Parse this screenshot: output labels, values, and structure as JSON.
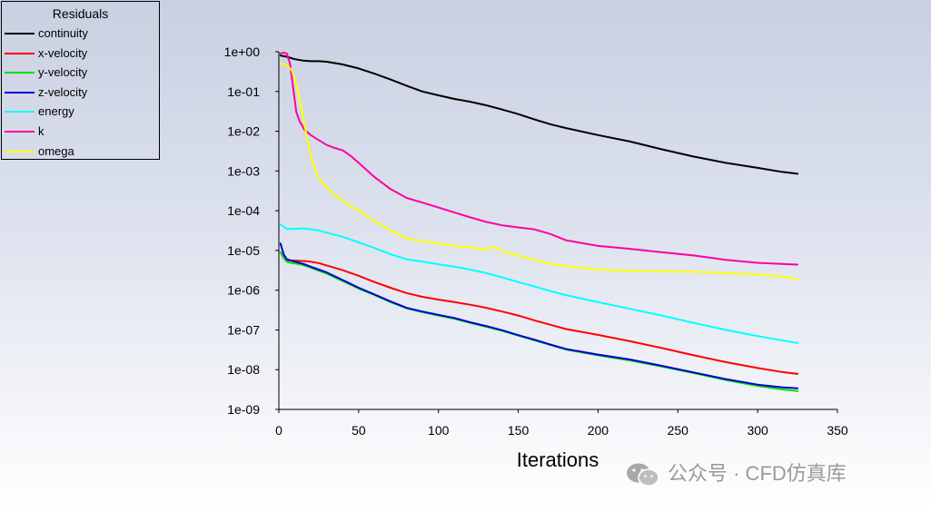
{
  "legend": {
    "title": "Residuals",
    "items": [
      {
        "label": "continuity",
        "color": "#000000"
      },
      {
        "label": "x-velocity",
        "color": "#ff0000"
      },
      {
        "label": "y-velocity",
        "color": "#00e000"
      },
      {
        "label": "z-velocity",
        "color": "#0000d0"
      },
      {
        "label": "energy",
        "color": "#00ffff"
      },
      {
        "label": "k",
        "color": "#ff00a0"
      },
      {
        "label": "omega",
        "color": "#ffff00"
      }
    ]
  },
  "watermark": {
    "text": "公众号 · CFD仿真库",
    "icon": "wechat-icon"
  },
  "chart_data": {
    "type": "line",
    "title": "",
    "xlabel": "Iterations",
    "ylabel": "",
    "xlim": [
      0,
      350
    ],
    "ylim": [
      1e-09,
      1
    ],
    "yscale": "log",
    "xticks": [
      0,
      50,
      100,
      150,
      200,
      250,
      300,
      350
    ],
    "yticks": [
      {
        "value": 1,
        "label": "1e+00"
      },
      {
        "value": 0.1,
        "label": "1e-01"
      },
      {
        "value": 0.01,
        "label": "1e-02"
      },
      {
        "value": 0.001,
        "label": "1e-03"
      },
      {
        "value": 0.0001,
        "label": "1e-04"
      },
      {
        "value": 1e-05,
        "label": "1e-05"
      },
      {
        "value": 1e-06,
        "label": "1e-06"
      },
      {
        "value": 1e-07,
        "label": "1e-07"
      },
      {
        "value": 1e-08,
        "label": "1e-08"
      },
      {
        "value": 1e-09,
        "label": "1e-09"
      }
    ],
    "series": [
      {
        "name": "continuity",
        "color": "#000000",
        "x": [
          1,
          5,
          10,
          15,
          20,
          25,
          30,
          40,
          50,
          60,
          70,
          80,
          90,
          100,
          110,
          120,
          130,
          140,
          150,
          160,
          170,
          180,
          200,
          220,
          240,
          260,
          280,
          300,
          315,
          325
        ],
        "y": [
          0.8,
          0.75,
          0.65,
          0.6,
          0.58,
          0.58,
          0.56,
          0.48,
          0.38,
          0.28,
          0.2,
          0.14,
          0.1,
          0.08,
          0.065,
          0.055,
          0.045,
          0.035,
          0.027,
          0.02,
          0.015,
          0.012,
          0.008,
          0.0055,
          0.0035,
          0.0023,
          0.0016,
          0.0012,
          0.00095,
          0.00085
        ]
      },
      {
        "name": "x-velocity",
        "color": "#ff0000",
        "x": [
          1,
          3,
          5,
          8,
          12,
          16,
          20,
          25,
          30,
          40,
          50,
          60,
          70,
          80,
          90,
          100,
          110,
          120,
          130,
          140,
          150,
          160,
          170,
          180,
          200,
          220,
          240,
          260,
          280,
          300,
          315,
          325
        ],
        "y": [
          9e-06,
          6.5e-06,
          5.6e-06,
          5.6e-06,
          5.5e-06,
          5.4e-06,
          5.2e-06,
          4.8e-06,
          4.2e-06,
          3.2e-06,
          2.3e-06,
          1.6e-06,
          1.15e-06,
          8.5e-07,
          6.8e-07,
          5.8e-07,
          5e-07,
          4.3e-07,
          3.6e-07,
          2.9e-07,
          2.3e-07,
          1.75e-07,
          1.35e-07,
          1.05e-07,
          7.5e-08,
          5.2e-08,
          3.5e-08,
          2.3e-08,
          1.55e-08,
          1.1e-08,
          8.8e-09,
          7.8e-09
        ]
      },
      {
        "name": "y-velocity",
        "color": "#00e000",
        "x": [
          1,
          3,
          5,
          8,
          12,
          16,
          20,
          25,
          30,
          40,
          50,
          60,
          70,
          80,
          90,
          100,
          110,
          120,
          130,
          140,
          150,
          160,
          170,
          180,
          200,
          220,
          240,
          260,
          280,
          300,
          315,
          325
        ],
        "y": [
          9e-06,
          6.5e-06,
          5.2e-06,
          4.8e-06,
          4.6e-06,
          4.2e-06,
          3.7e-06,
          3.1e-06,
          2.6e-06,
          1.7e-06,
          1.1e-06,
          7.5e-07,
          5e-07,
          3.5e-07,
          2.8e-07,
          2.3e-07,
          1.9e-07,
          1.5e-07,
          1.2e-07,
          9.5e-08,
          7.2e-08,
          5.5e-08,
          4.2e-08,
          3.2e-08,
          2.3e-08,
          1.7e-08,
          1.2e-08,
          8.2e-09,
          5.5e-09,
          3.9e-09,
          3.2e-09,
          2.9e-09
        ]
      },
      {
        "name": "z-velocity",
        "color": "#0000d0",
        "x": [
          1,
          3,
          5,
          8,
          12,
          16,
          20,
          25,
          30,
          40,
          50,
          60,
          70,
          80,
          90,
          100,
          110,
          120,
          130,
          140,
          150,
          160,
          170,
          180,
          200,
          220,
          240,
          260,
          280,
          300,
          315,
          325
        ],
        "y": [
          1.5e-05,
          8e-06,
          6e-06,
          5.5e-06,
          5e-06,
          4.5e-06,
          3.9e-06,
          3.3e-06,
          2.8e-06,
          1.8e-06,
          1.15e-06,
          7.8e-07,
          5.2e-07,
          3.6e-07,
          2.9e-07,
          2.4e-07,
          2e-07,
          1.55e-07,
          1.25e-07,
          9.8e-08,
          7.4e-08,
          5.7e-08,
          4.3e-08,
          3.3e-08,
          2.4e-08,
          1.8e-08,
          1.25e-08,
          8.5e-09,
          5.8e-09,
          4.2e-09,
          3.6e-09,
          3.4e-09
        ]
      },
      {
        "name": "energy",
        "color": "#00ffff",
        "x": [
          1,
          5,
          10,
          15,
          20,
          25,
          30,
          40,
          50,
          60,
          70,
          80,
          90,
          100,
          110,
          120,
          130,
          140,
          150,
          160,
          170,
          180,
          200,
          220,
          240,
          260,
          280,
          300,
          315,
          325
        ],
        "y": [
          4.5e-05,
          3.5e-05,
          3.5e-05,
          3.6e-05,
          3.4e-05,
          3.2e-05,
          2.8e-05,
          2.2e-05,
          1.6e-05,
          1.15e-05,
          8e-06,
          6e-06,
          5.2e-06,
          4.5e-06,
          3.9e-06,
          3.3e-06,
          2.7e-06,
          2.1e-06,
          1.6e-06,
          1.25e-06,
          9.5e-07,
          7.5e-07,
          5e-07,
          3.4e-07,
          2.3e-07,
          1.5e-07,
          1e-07,
          7e-08,
          5.5e-08,
          4.7e-08
        ]
      },
      {
        "name": "k",
        "color": "#ff00a0",
        "x": [
          1,
          3,
          5,
          7,
          9,
          11,
          13,
          16,
          20,
          25,
          30,
          35,
          40,
          45,
          50,
          60,
          70,
          80,
          90,
          100,
          110,
          120,
          130,
          140,
          150,
          160,
          170,
          180,
          200,
          220,
          240,
          260,
          280,
          300,
          315,
          325
        ],
        "y": [
          0.9,
          0.95,
          0.9,
          0.5,
          0.12,
          0.03,
          0.018,
          0.011,
          0.008,
          0.006,
          0.0045,
          0.0038,
          0.0033,
          0.0024,
          0.0016,
          0.0007,
          0.00035,
          0.00021,
          0.00016,
          0.00012,
          9e-05,
          6.8e-05,
          5.2e-05,
          4.3e-05,
          3.8e-05,
          3.4e-05,
          2.6e-05,
          1.8e-05,
          1.3e-05,
          1.1e-05,
          9e-06,
          7.5e-06,
          5.8e-06,
          4.9e-06,
          4.6e-06,
          4.4e-06
        ]
      },
      {
        "name": "omega",
        "color": "#ffff00",
        "x": [
          1,
          5,
          8,
          10,
          12,
          14,
          16,
          18,
          20,
          23,
          26,
          30,
          35,
          40,
          45,
          50,
          60,
          70,
          80,
          90,
          100,
          110,
          120,
          130,
          135,
          140,
          150,
          160,
          170,
          180,
          200,
          220,
          240,
          260,
          280,
          300,
          315,
          325
        ],
        "y": [
          0.5,
          0.45,
          0.35,
          0.2,
          0.1,
          0.04,
          0.015,
          0.006,
          0.0025,
          0.001,
          0.0006,
          0.00038,
          0.00025,
          0.00018,
          0.00013,
          0.0001,
          5.5e-05,
          3.2e-05,
          2e-05,
          1.7e-05,
          1.5e-05,
          1.3e-05,
          1.2e-05,
          1.05e-05,
          1.25e-05,
          9.5e-06,
          7.5e-06,
          5.8e-06,
          4.6e-06,
          4e-06,
          3.3e-06,
          3.1e-06,
          3e-06,
          2.9e-06,
          2.7e-06,
          2.5e-06,
          2.2e-06,
          1.9e-06
        ]
      }
    ]
  }
}
